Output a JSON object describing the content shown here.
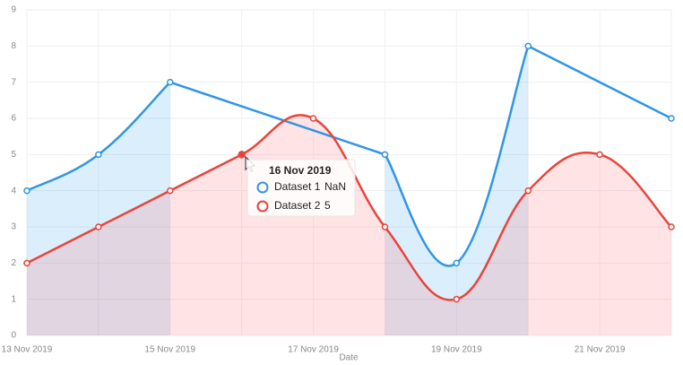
{
  "chart_data": {
    "type": "line",
    "x_label": "Date",
    "categories": [
      "13 Nov 2019",
      null,
      "15 Nov 2019",
      null,
      "17 Nov 2019",
      null,
      "19 Nov 2019",
      null,
      "21 Nov 2019",
      null
    ],
    "series": [
      {
        "name": "Dataset 1",
        "color": "#3196e2",
        "fill": "rgba(54,162,235,0.18)",
        "values": [
          4,
          5,
          7,
          null,
          null,
          5,
          2,
          8,
          null,
          6
        ]
      },
      {
        "name": "Dataset 2",
        "color": "#e8443b",
        "fill": "rgba(255,99,110,0.18)",
        "values": [
          2,
          3,
          4,
          5,
          6,
          3,
          1,
          4,
          5,
          3
        ]
      }
    ],
    "ylim": [
      0,
      9
    ],
    "yticks": [
      0,
      1,
      2,
      3,
      4,
      5,
      6,
      7,
      8,
      9
    ],
    "grid": true,
    "tooltip": {
      "title": "16 Nov 2019",
      "index": 3,
      "null_label": "NaN"
    }
  }
}
